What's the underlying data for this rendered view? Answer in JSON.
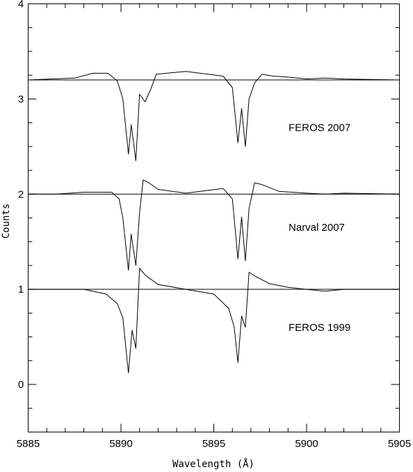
{
  "chart_data": {
    "type": "line",
    "title": "",
    "xlabel": "Wavelength (Å)",
    "ylabel": "Counts",
    "xlim": [
      5885,
      5905
    ],
    "ylim": [
      -0.5,
      4
    ],
    "xticks": [
      5885,
      5890,
      5895,
      5900,
      5905
    ],
    "xticklabels": [
      "5885",
      "5890",
      "5895",
      "5900",
      "5905"
    ],
    "yticks": [
      0,
      1,
      2,
      3,
      4
    ],
    "yticklabels": [
      "0",
      "1",
      "2",
      "3",
      "4"
    ],
    "grid": false,
    "legend": "none",
    "series": [
      {
        "label": "FEROS 2007",
        "level": 3.2,
        "x": [
          5885,
          5887.5,
          5888.5,
          5889.3,
          5889.8,
          5890.1,
          5890.4,
          5890.55,
          5890.8,
          5891.0,
          5891.3,
          5891.6,
          5891.9,
          5893.5,
          5895.5,
          5896.0,
          5896.3,
          5896.5,
          5896.7,
          5896.9,
          5897.2,
          5897.6,
          5898.2,
          5899.0,
          5900.0,
          5901.0,
          5902.0,
          5905
        ],
        "y": [
          3.2,
          3.22,
          3.27,
          3.27,
          3.19,
          3.0,
          2.42,
          2.73,
          2.35,
          3.05,
          2.97,
          3.1,
          3.26,
          3.29,
          3.24,
          3.12,
          2.54,
          2.9,
          2.5,
          3.0,
          3.17,
          3.26,
          3.24,
          3.23,
          3.21,
          3.22,
          3.21,
          3.2
        ]
      },
      {
        "label": "Narval 2007",
        "level": 2.0,
        "x": [
          5885,
          5886.5,
          5888.0,
          5889.5,
          5889.9,
          5890.1,
          5890.4,
          5890.55,
          5890.8,
          5891.0,
          5891.2,
          5891.5,
          5892.0,
          5893.5,
          5895.5,
          5896.0,
          5896.3,
          5896.5,
          5896.7,
          5896.9,
          5897.2,
          5897.6,
          5898.5,
          5900.0,
          5901.0,
          5902.0,
          5905
        ],
        "y": [
          2.0,
          2.0,
          2.02,
          2.02,
          1.95,
          1.75,
          1.2,
          1.58,
          1.25,
          1.8,
          2.15,
          2.12,
          2.05,
          2.01,
          2.06,
          1.95,
          1.32,
          1.76,
          1.3,
          1.85,
          2.12,
          2.1,
          2.03,
          2.01,
          2.0,
          2.01,
          2.0
        ]
      },
      {
        "label": "FEROS 1999",
        "level": 1.0,
        "x": [
          5885,
          5888.0,
          5889.2,
          5889.8,
          5890.1,
          5890.4,
          5890.6,
          5890.8,
          5891.0,
          5891.3,
          5892.0,
          5893.5,
          5895.0,
          5895.8,
          5896.1,
          5896.3,
          5896.5,
          5896.7,
          5896.9,
          5897.2,
          5898.0,
          5899.0,
          5900.0,
          5901.0,
          5902.0,
          5905
        ],
        "y": [
          1.0,
          1.0,
          0.95,
          0.85,
          0.7,
          0.12,
          0.57,
          0.38,
          1.22,
          1.15,
          1.05,
          1.0,
          0.95,
          0.8,
          0.6,
          0.23,
          0.72,
          0.6,
          1.18,
          1.14,
          1.06,
          1.02,
          1.0,
          0.98,
          1.0,
          1.0
        ]
      }
    ]
  }
}
